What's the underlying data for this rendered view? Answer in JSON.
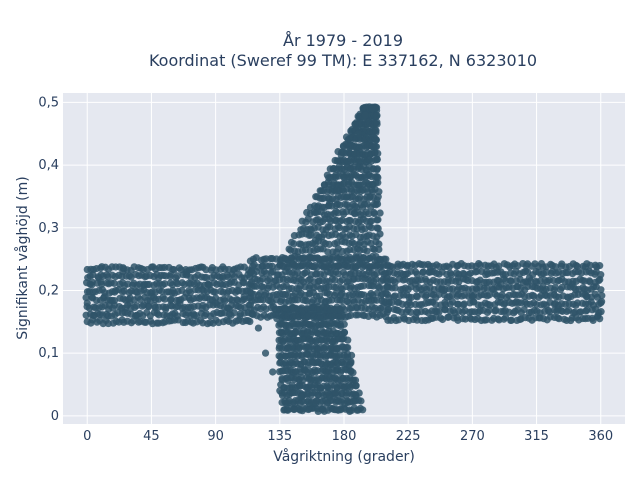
{
  "chart_data": {
    "type": "scatter",
    "title_line1": "År 1979 - 2019",
    "title_line2": "Koordinat (Sweref 99 TM): E 337162, N 6323010",
    "xlabel": "Vågriktning (grader)",
    "ylabel": "Signifikant våghöjd (m)",
    "xlim": [
      -17,
      377
    ],
    "ylim": [
      -0.013,
      0.515
    ],
    "xticks": [
      0,
      45,
      90,
      135,
      180,
      225,
      270,
      315,
      360
    ],
    "xtick_labels": [
      "0",
      "45",
      "90",
      "135",
      "180",
      "225",
      "270",
      "315",
      "360"
    ],
    "yticks": [
      0,
      0.1,
      0.2,
      0.3,
      0.4,
      0.5
    ],
    "ytick_labels": [
      "0",
      "0,1",
      "0,2",
      "0,3",
      "0,4",
      "0,5"
    ],
    "grid": true,
    "point_color": "#2f5468",
    "plot_background": "#e5e8f0",
    "point_groups": [
      {
        "x": [
          0,
          2,
          5,
          8,
          12,
          15,
          20,
          25,
          30,
          35,
          40,
          45,
          50,
          55,
          60,
          65,
          70,
          75,
          80,
          85,
          90,
          95,
          100,
          105,
          110,
          115
        ],
        "y": [
          0.18,
          0.21,
          0.16,
          0.22,
          0.19,
          0.17,
          0.2,
          0.23,
          0.18,
          0.16,
          0.21,
          0.19,
          0.22,
          0.17,
          0.2,
          0.18,
          0.23,
          0.16,
          0.19,
          0.21,
          0.18,
          0.22,
          0.17,
          0.2,
          0.19,
          0.23
        ]
      },
      {
        "x": [
          120,
          125,
          130,
          135,
          140,
          145,
          150,
          155,
          160,
          165,
          170,
          175
        ],
        "y": [
          0.14,
          0.1,
          0.07,
          0.04,
          0.02,
          0.01,
          0.03,
          0.01,
          0.02,
          0.01,
          0.03,
          0.01
        ]
      },
      {
        "x": [
          160,
          165,
          170,
          175,
          180,
          185,
          190,
          195,
          200
        ],
        "y": [
          0.28,
          0.31,
          0.34,
          0.36,
          0.38,
          0.41,
          0.45,
          0.48,
          0.49
        ]
      },
      {
        "x": [
          210,
          220,
          230,
          240,
          250,
          260,
          270,
          280,
          290,
          300,
          310,
          320,
          330,
          340,
          350,
          358,
          360
        ],
        "y": [
          0.22,
          0.24,
          0.21,
          0.23,
          0.2,
          0.22,
          0.19,
          0.23,
          0.21,
          0.18,
          0.22,
          0.2,
          0.17,
          0.21,
          0.19,
          0.16,
          0.18
        ]
      }
    ],
    "shape_regions": [
      {
        "label": "band-west",
        "x": [
          0,
          115
        ],
        "y": [
          0.15,
          0.235
        ]
      },
      {
        "label": "band-east",
        "x": [
          210,
          360
        ],
        "y": [
          0.155,
          0.24
        ]
      },
      {
        "label": "center-band",
        "x": [
          115,
          210
        ],
        "y": [
          0.16,
          0.25
        ]
      },
      {
        "label": "tail-low",
        "x": [
          125,
          210
        ],
        "y": [
          0.01,
          0.17
        ]
      },
      {
        "label": "wing-high",
        "x": [
          150,
          205
        ],
        "y": [
          0.24,
          0.49
        ]
      }
    ]
  }
}
